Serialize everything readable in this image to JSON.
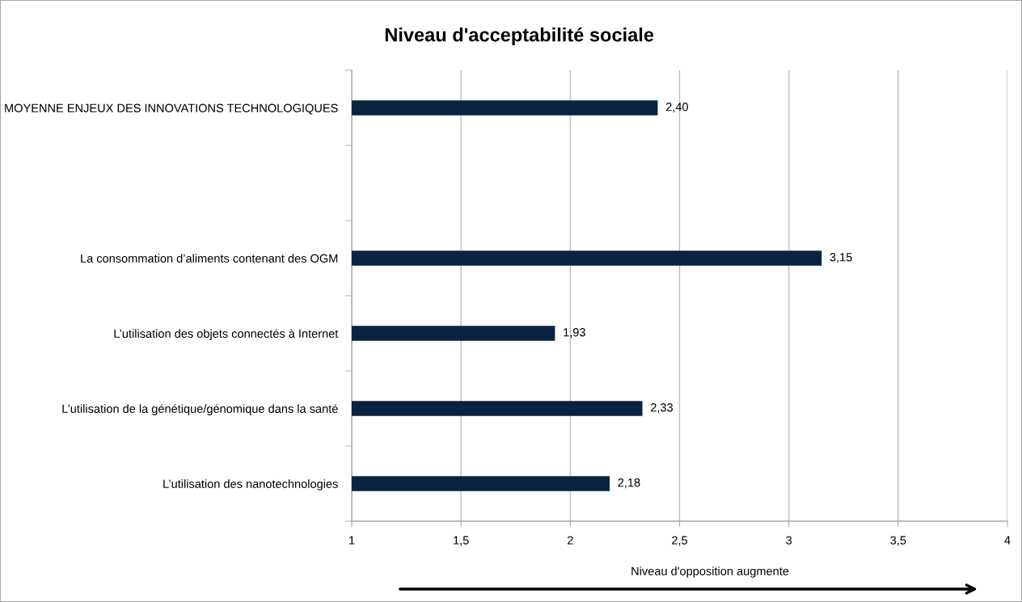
{
  "chart_data": {
    "type": "bar",
    "orientation": "horizontal",
    "title": "Niveau d'acceptabilité sociale",
    "categories": [
      "MOYENNE ENJEUX DES INNOVATIONS TECHNOLOGIQUES",
      null,
      "La consommation d’aliments contenant des OGM",
      "L’utilisation des objets connectés à Internet",
      "L’utilisation de la génétique/génomique dans la santé",
      "L’utilisation des nanotechnologies"
    ],
    "values": [
      2.4,
      null,
      3.15,
      1.93,
      2.33,
      2.18
    ],
    "value_labels": [
      "2,40",
      null,
      "3,15",
      "1,93",
      "2,33",
      "2,18"
    ],
    "color": "#0b2341",
    "xlim": [
      1,
      4
    ],
    "xticks": [
      1,
      {
        "value": 1.5,
        "label": "1,5"
      },
      2,
      {
        "value": 2.5,
        "label": "2,5"
      },
      3,
      {
        "value": 3.5,
        "label": "3,5"
      },
      4
    ],
    "grid": "x",
    "annotations": [
      "Niveau d'opposition augmente"
    ]
  }
}
